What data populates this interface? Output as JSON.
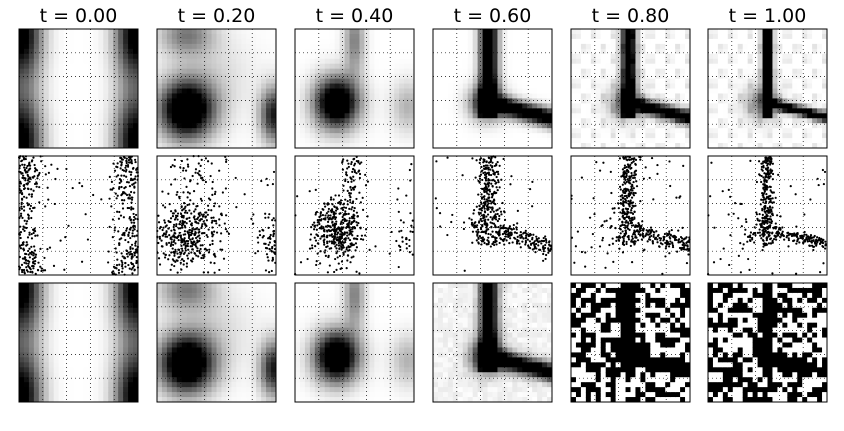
{
  "chart_data": {
    "type": "heatmap",
    "layout": "grid of panels, 3 rows x 6 columns, grayscale",
    "columns": [
      {
        "title": "t = 0.00",
        "t": 0.0
      },
      {
        "title": "t = 0.20",
        "t": 0.2
      },
      {
        "title": "t = 0.40",
        "t": 0.4
      },
      {
        "title": "t = 0.60",
        "t": 0.6
      },
      {
        "title": "t = 0.80",
        "t": 0.8
      },
      {
        "title": "t = 1.00",
        "t": 1.0
      }
    ],
    "rows": [
      {
        "kind": "density"
      },
      {
        "kind": "samples"
      },
      {
        "kind": "density-noisy"
      }
    ],
    "axes": {
      "xlim": [
        0,
        1
      ],
      "ylim": [
        0,
        1
      ],
      "grid": "dotted",
      "grid_lines": [
        0.2,
        0.4,
        0.6,
        0.8
      ],
      "tick_labels": false
    },
    "colors": {
      "background": "#ffffff",
      "ink": "#000000",
      "grid": "#000000"
    }
  }
}
